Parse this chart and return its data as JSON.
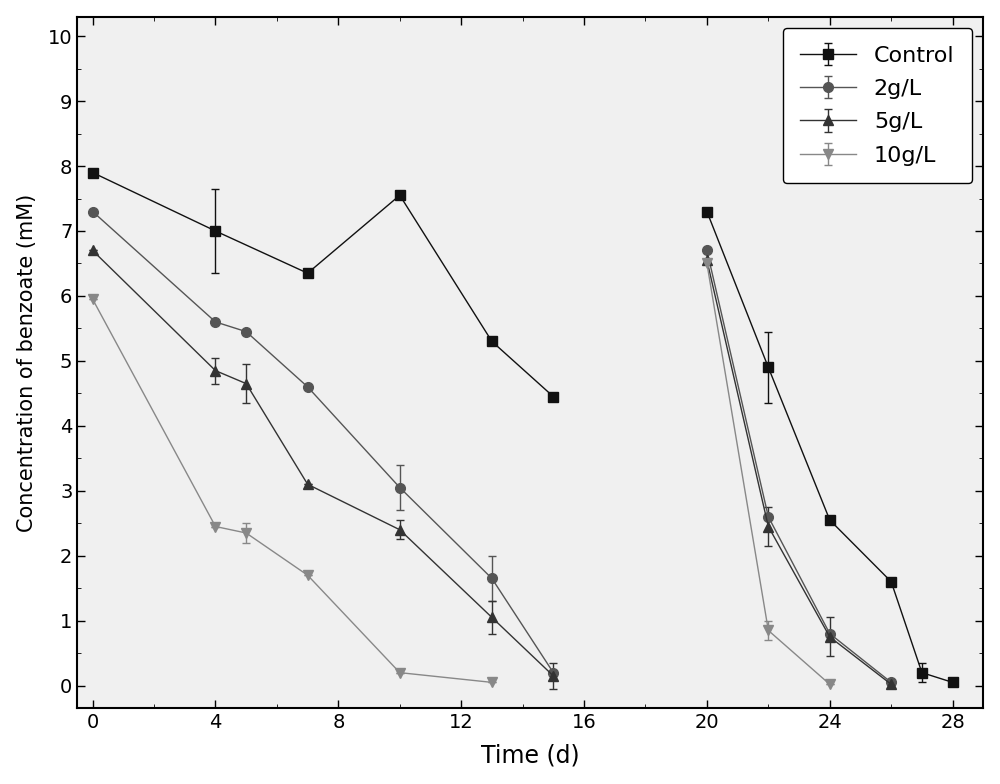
{
  "title": "",
  "xlabel": "Time (d)",
  "ylabel": "Concentration of benzoate (mM)",
  "xlim": [
    -0.5,
    29
  ],
  "ylim": [
    -0.35,
    10.3
  ],
  "xticks": [
    0,
    4,
    8,
    12,
    16,
    20,
    24,
    28
  ],
  "yticks": [
    0,
    1,
    2,
    3,
    4,
    5,
    6,
    7,
    8,
    9,
    10
  ],
  "background_color": "#ffffff",
  "plot_bg_color": "#f0f0f0",
  "series": [
    {
      "label": "Control",
      "color": "#111111",
      "marker": "s",
      "markersize": 7,
      "segments": [
        {
          "x": [
            0,
            4,
            7,
            10,
            13,
            15
          ],
          "y": [
            7.9,
            7.0,
            6.35,
            7.55,
            5.3,
            4.45
          ],
          "yerr": [
            0,
            0.65,
            0,
            0,
            0,
            0
          ]
        },
        {
          "x": [
            20,
            22,
            24,
            26,
            27,
            28
          ],
          "y": [
            7.3,
            4.9,
            2.55,
            1.6,
            0.2,
            0.05
          ],
          "yerr": [
            0,
            0.55,
            0,
            0,
            0.15,
            0
          ]
        }
      ]
    },
    {
      "label": "2g/L",
      "color": "#555555",
      "marker": "o",
      "markersize": 7,
      "segments": [
        {
          "x": [
            0,
            4,
            5,
            7,
            10,
            13,
            15
          ],
          "y": [
            7.3,
            5.6,
            5.45,
            4.6,
            3.05,
            1.65,
            0.2
          ],
          "yerr": [
            0,
            0,
            0,
            0,
            0.35,
            0.35,
            0
          ]
        },
        {
          "x": [
            20,
            22,
            24,
            26
          ],
          "y": [
            6.7,
            2.6,
            0.8,
            0.05
          ],
          "yerr": [
            0,
            0,
            0,
            0
          ]
        }
      ]
    },
    {
      "label": "5g/L",
      "color": "#333333",
      "marker": "^",
      "markersize": 7,
      "segments": [
        {
          "x": [
            0,
            4,
            5,
            7,
            10,
            13,
            15
          ],
          "y": [
            6.7,
            4.85,
            4.65,
            3.1,
            2.4,
            1.05,
            0.15
          ],
          "yerr": [
            0,
            0.2,
            0.3,
            0,
            0.15,
            0.25,
            0.2
          ]
        },
        {
          "x": [
            20,
            22,
            24,
            26
          ],
          "y": [
            6.55,
            2.45,
            0.75,
            0.02
          ],
          "yerr": [
            0,
            0.3,
            0.3,
            0
          ]
        }
      ]
    },
    {
      "label": "10g/L",
      "color": "#888888",
      "marker": "v",
      "markersize": 7,
      "segments": [
        {
          "x": [
            0,
            4,
            5,
            7,
            10,
            13
          ],
          "y": [
            5.95,
            2.45,
            2.35,
            1.7,
            0.2,
            0.05
          ],
          "yerr": [
            0,
            0,
            0.15,
            0,
            0,
            0
          ]
        },
        {
          "x": [
            20,
            22,
            24
          ],
          "y": [
            6.5,
            0.85,
            0.02
          ],
          "yerr": [
            0,
            0.15,
            0
          ]
        }
      ]
    }
  ],
  "fontsize": 15,
  "tick_fontsize": 14,
  "legend_fontsize": 16
}
